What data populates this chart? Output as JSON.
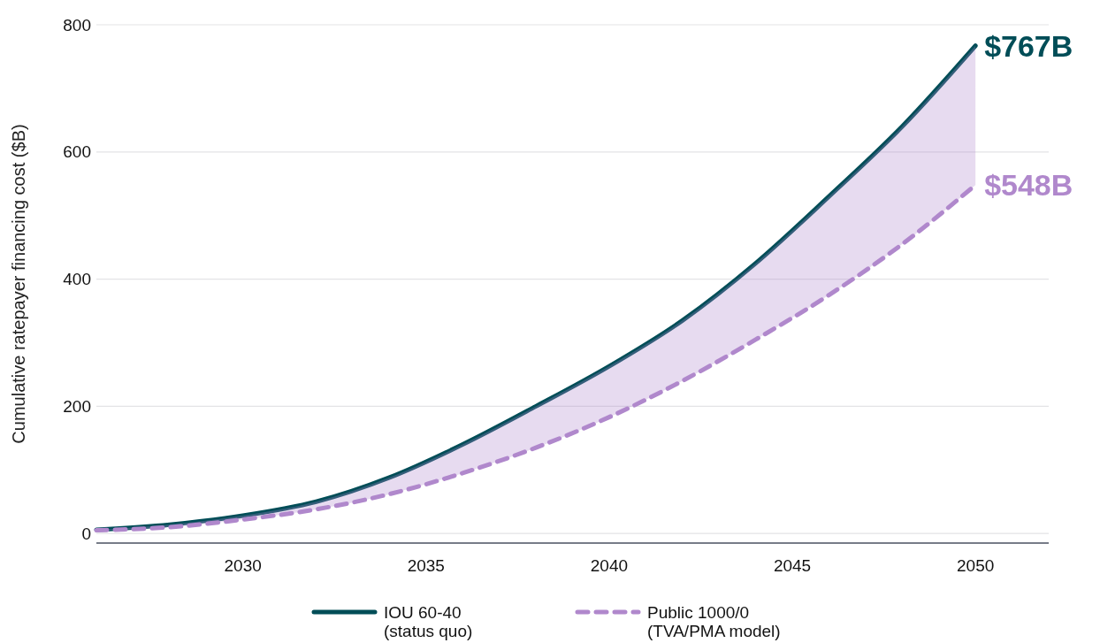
{
  "chart_data": {
    "type": "line",
    "ylabel": "Cumulative ratepayer financing cost ($B)",
    "x": [
      2026,
      2028,
      2030,
      2032,
      2034,
      2036,
      2038,
      2040,
      2042,
      2044,
      2046,
      2048,
      2050
    ],
    "series": [
      {
        "name": "IOU 60-40\n(status quo)",
        "color": "#004d57",
        "line_style": "solid",
        "values": [
          6,
          14,
          28,
          50,
          88,
          140,
          200,
          263,
          335,
          425,
          530,
          640,
          767
        ],
        "value_labels": [
          null,
          null,
          null,
          null,
          null,
          null,
          null,
          null,
          null,
          null,
          null,
          null,
          "$767B"
        ]
      },
      {
        "name": "Public 1000/0\n(TVA/PMA model)",
        "color": "#b088cc",
        "line_style": "dashed",
        "values": [
          5,
          10,
          22,
          38,
          62,
          95,
          135,
          183,
          240,
          305,
          375,
          455,
          548
        ],
        "value_labels": [
          null,
          null,
          null,
          null,
          null,
          null,
          null,
          null,
          null,
          null,
          null,
          null,
          "$548B"
        ],
        "lower": [
          5,
          10,
          22,
          38,
          62,
          95,
          135,
          183,
          240,
          305,
          375,
          455,
          548
        ],
        "upper": [
          6,
          14,
          28,
          50,
          88,
          140,
          200,
          263,
          335,
          425,
          530,
          640,
          767
        ]
      }
    ],
    "xlim": [
      2026,
      2052
    ],
    "xticks": [
      2030,
      2035,
      2040,
      2045,
      2050
    ],
    "ylim": [
      -15,
      800
    ],
    "yticks": [
      0,
      200,
      400,
      600,
      800
    ],
    "grid": "y",
    "legend": "bottom",
    "marker": "none"
  }
}
